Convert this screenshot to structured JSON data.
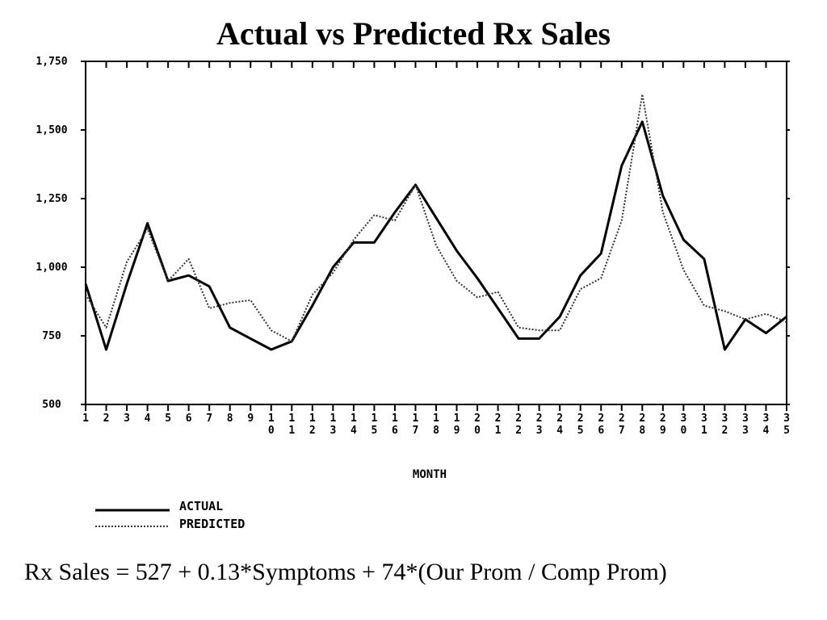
{
  "title": "Actual vs Predicted Rx Sales",
  "equation": "Rx Sales = 527 + 0.13*Symptoms  + 74*(Our Prom / Comp Prom)",
  "colors": {
    "actual": "#000000",
    "predicted": "#333333",
    "background": "#ffffff"
  },
  "chart_data": {
    "type": "line",
    "title": "Actual vs Predicted Rx Sales",
    "xlabel": "MONTH",
    "ylabel": "",
    "ylim": [
      500,
      1750
    ],
    "yticks": [
      500,
      750,
      1000,
      1250,
      1500,
      1750
    ],
    "ytick_labels": [
      "500",
      "750",
      "1,000",
      "1,250",
      "1,500",
      "1,750"
    ],
    "x": [
      1,
      2,
      3,
      4,
      5,
      6,
      7,
      8,
      9,
      10,
      11,
      12,
      13,
      14,
      15,
      16,
      17,
      18,
      19,
      20,
      21,
      22,
      23,
      24,
      25,
      26,
      27,
      28,
      29,
      30,
      31,
      32,
      33,
      34,
      35
    ],
    "xtick_labels": [
      "1",
      "2",
      "3",
      "4",
      "5",
      "6",
      "7",
      "8",
      "9",
      "10",
      "11",
      "12",
      "13",
      "14",
      "15",
      "16",
      "17",
      "18",
      "19",
      "20",
      "21",
      "22",
      "23",
      "24",
      "25",
      "26",
      "27",
      "28",
      "29",
      "30",
      "31",
      "32",
      "33",
      "34",
      "35"
    ],
    "grid": false,
    "legend_position": "bottom-left",
    "series": [
      {
        "name": "ACTUAL",
        "style": "solid",
        "values": [
          940,
          700,
          940,
          1160,
          950,
          970,
          930,
          780,
          740,
          700,
          730,
          860,
          1000,
          1090,
          1090,
          1200,
          1300,
          1180,
          1060,
          960,
          850,
          740,
          740,
          820,
          970,
          1050,
          1370,
          1530,
          1260,
          1100,
          1030,
          700,
          810,
          760,
          820
        ]
      },
      {
        "name": "PREDICTED",
        "style": "dotted",
        "values": [
          900,
          780,
          1020,
          1140,
          950,
          1030,
          850,
          870,
          880,
          770,
          730,
          900,
          980,
          1100,
          1190,
          1170,
          1300,
          1080,
          950,
          890,
          910,
          780,
          770,
          770,
          920,
          960,
          1170,
          1630,
          1200,
          990,
          860,
          840,
          810,
          830,
          800
        ]
      }
    ]
  }
}
